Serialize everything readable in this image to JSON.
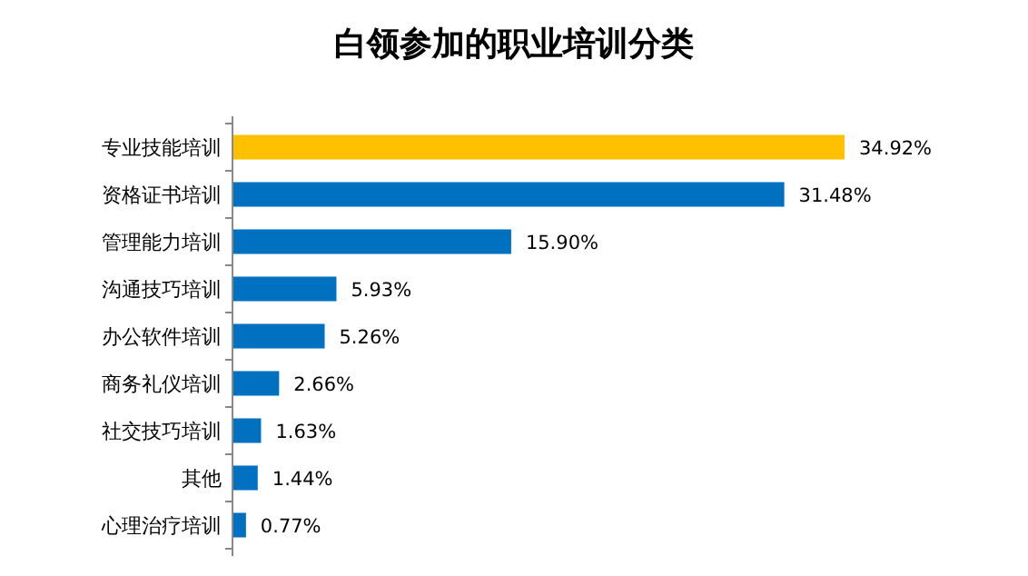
{
  "chart_data": {
    "type": "bar",
    "orientation": "horizontal",
    "title": "白领参加的职业培训分类",
    "categories": [
      "专业技能培训",
      "资格证书培训",
      "管理能力培训",
      "沟通技巧培训",
      "办公软件培训",
      "商务礼仪培训",
      "社交技巧培训",
      "其他",
      "心理治疗培训"
    ],
    "values": [
      34.92,
      31.48,
      15.9,
      5.93,
      5.26,
      2.66,
      1.63,
      1.44,
      0.77
    ],
    "value_labels": [
      "34.92%",
      "31.48%",
      "15.90%",
      "5.93%",
      "5.26%",
      "2.66%",
      "1.63%",
      "1.44%",
      "0.77%"
    ],
    "colors": [
      "#ffc000",
      "#0070c0",
      "#0070c0",
      "#0070c0",
      "#0070c0",
      "#0070c0",
      "#0070c0",
      "#0070c0",
      "#0070c0"
    ]
  }
}
